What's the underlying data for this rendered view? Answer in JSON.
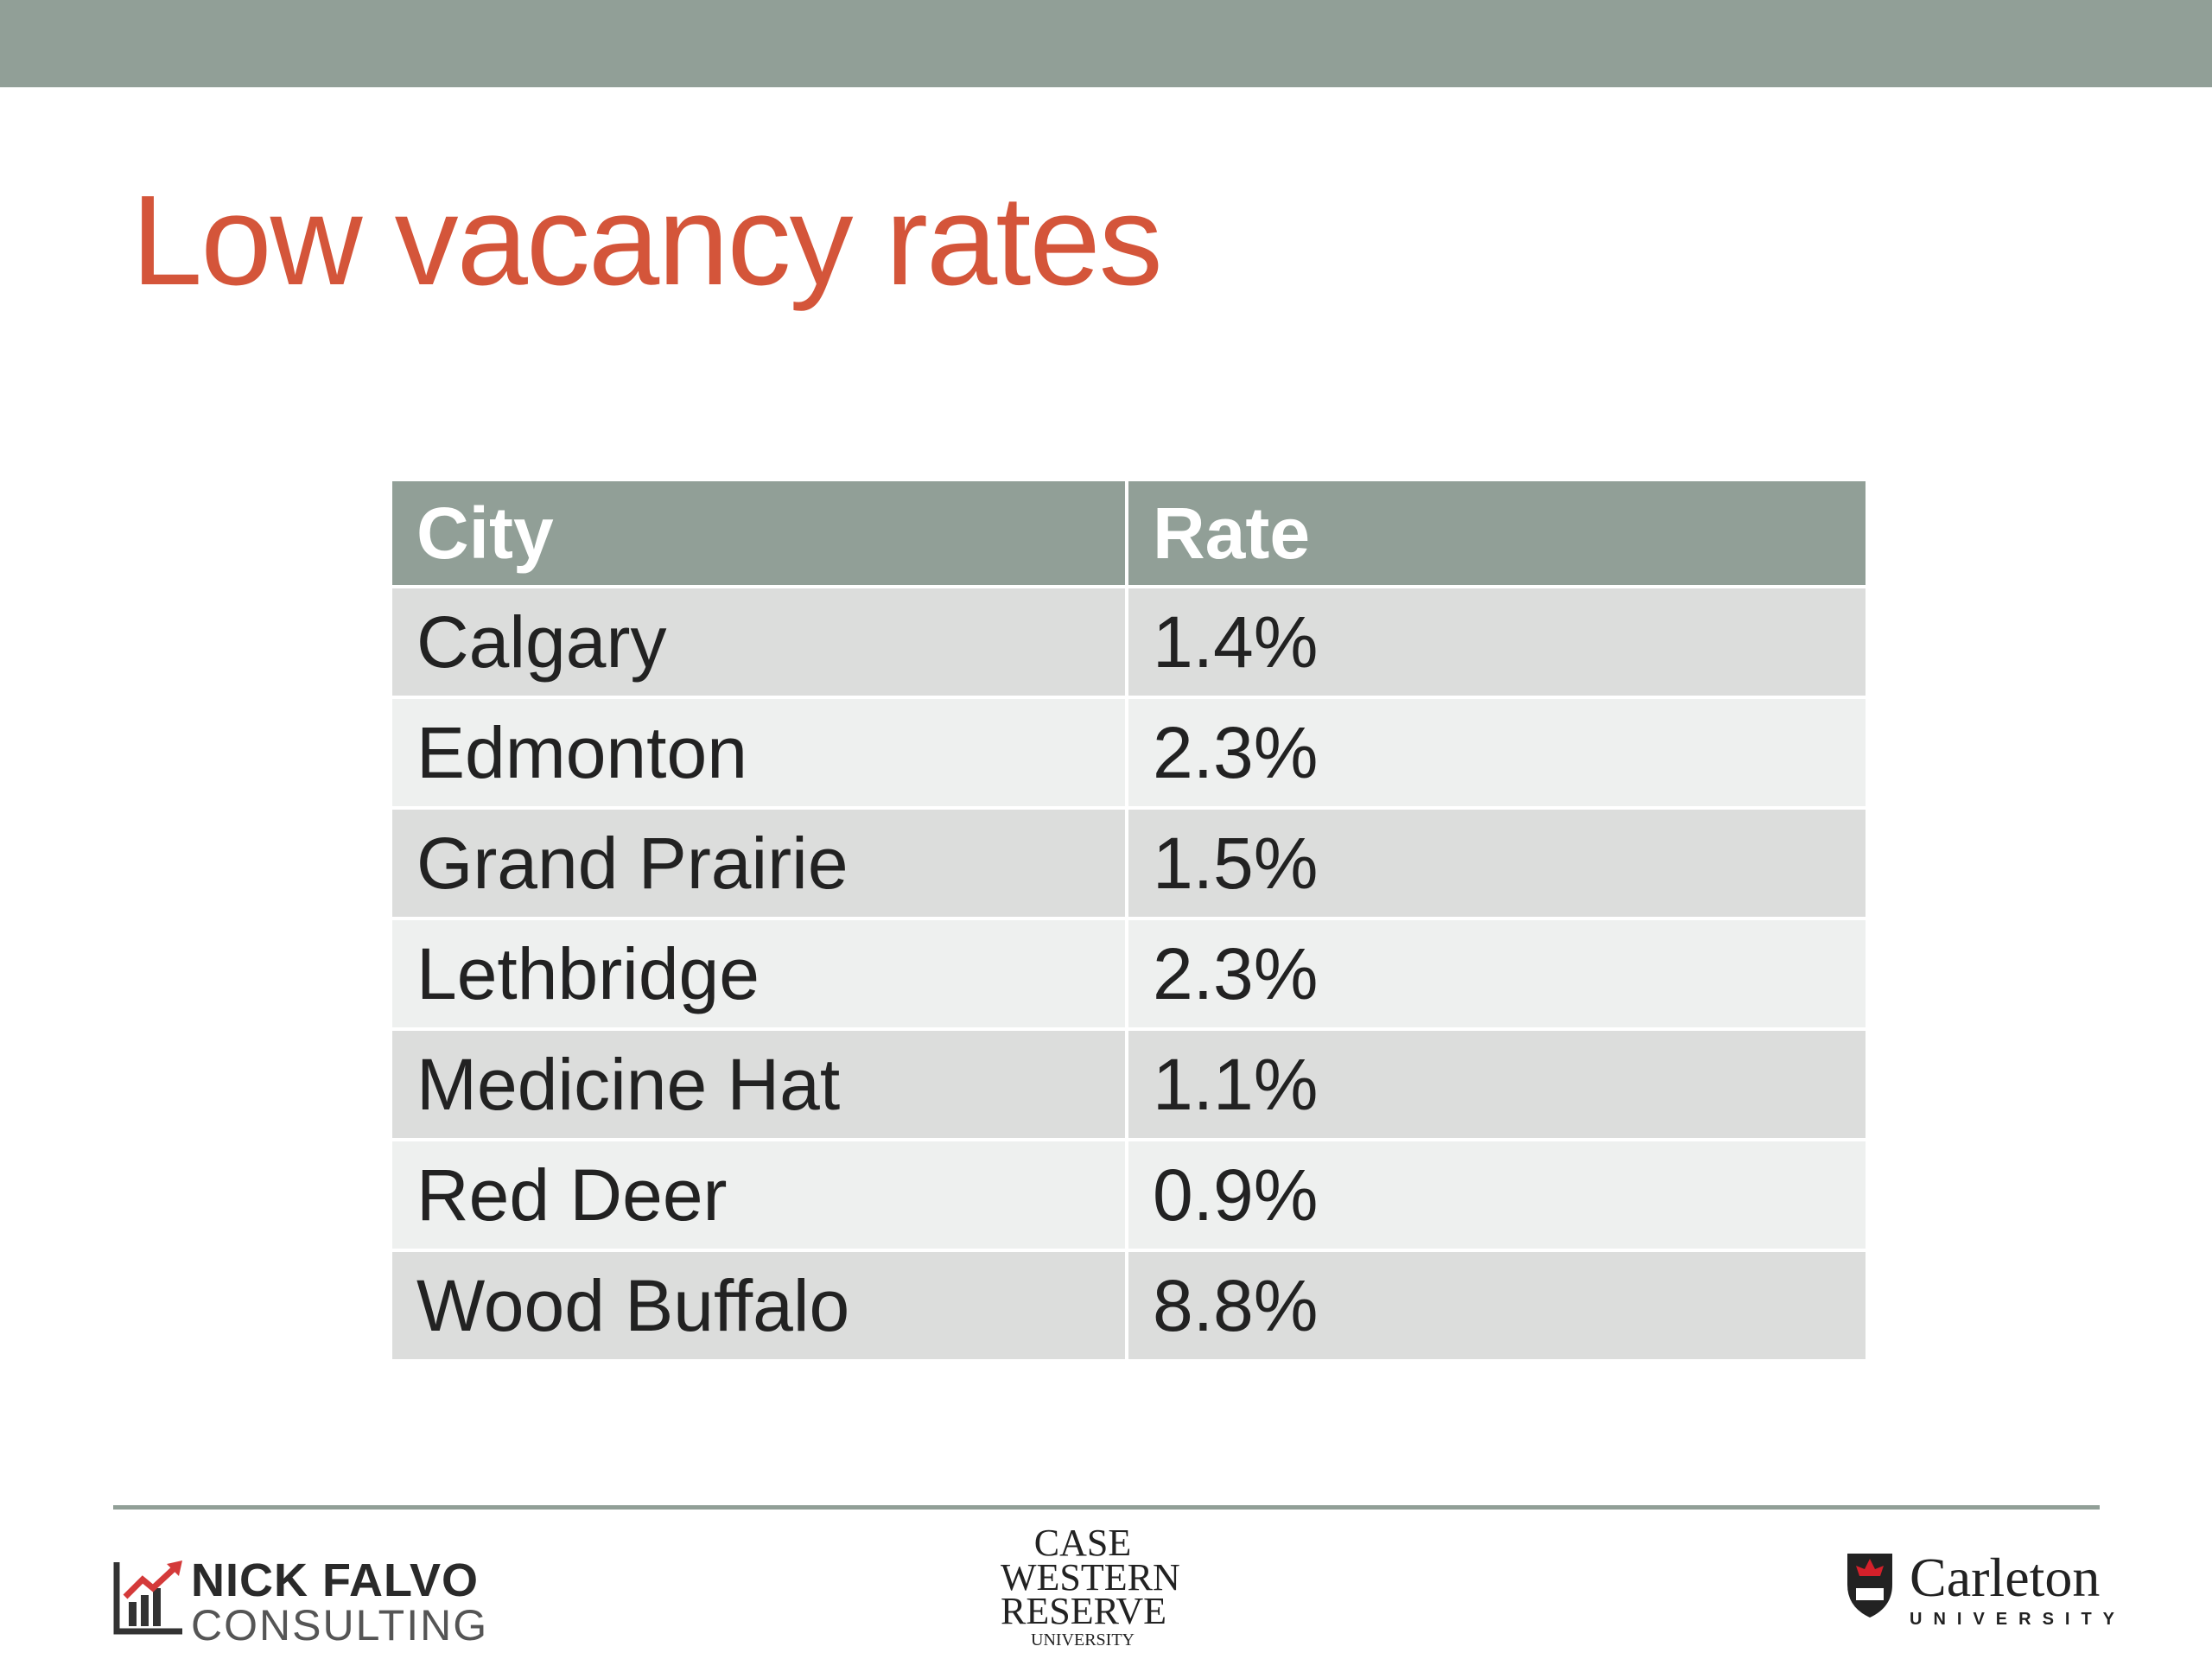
{
  "header": {
    "title": "Low vacancy rates"
  },
  "table": {
    "columns": [
      "City",
      "Rate"
    ],
    "rows": [
      [
        "Calgary",
        "1.4%"
      ],
      [
        "Edmonton",
        "2.3%"
      ],
      [
        "Grand Prairie",
        "1.5%"
      ],
      [
        "Lethbridge",
        "2.3%"
      ],
      [
        "Medicine Hat",
        "1.1%"
      ],
      [
        "Red Deer",
        "0.9%"
      ],
      [
        "Wood Buffalo",
        "8.8%"
      ]
    ]
  },
  "footer": {
    "logos": [
      {
        "line1": "NICK FALVO",
        "line2": "CONSULTING"
      },
      {
        "line1": "CASE",
        "line2": "WESTERN",
        "line3": "RESERVE",
        "line4": "UNIVERSITY"
      },
      {
        "line1": "Carleton",
        "line2": "UNIVERSITY"
      }
    ]
  }
}
